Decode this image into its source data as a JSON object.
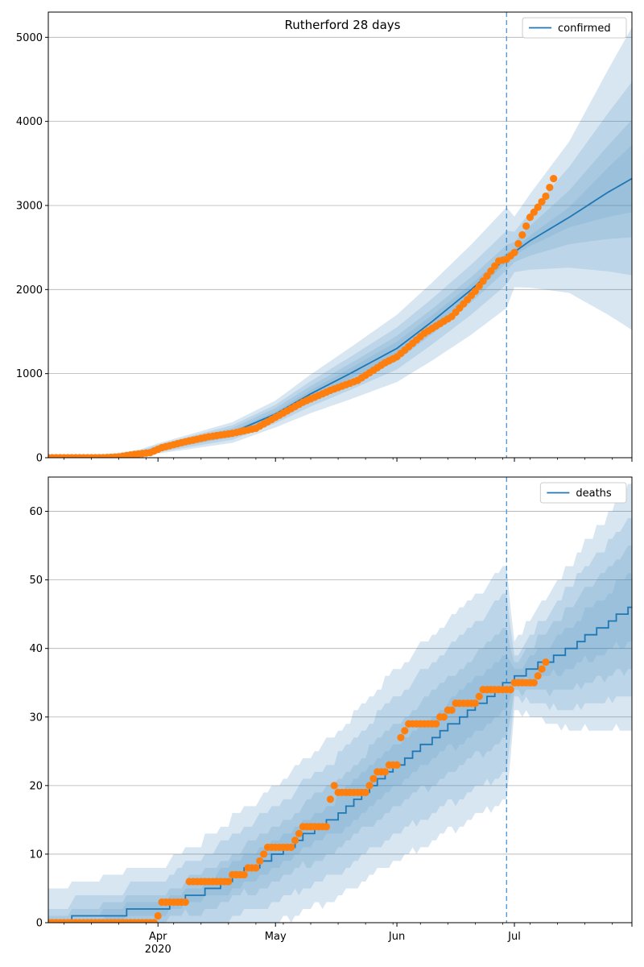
{
  "chart_data": [
    {
      "type": "line",
      "title": "Rutherford 28 days",
      "x_axis": {
        "type": "date",
        "range": [
          "2020-03-04",
          "2020-07-31"
        ],
        "tick_labels": [
          "Apr\n2020",
          "May",
          "Jun",
          "Jul"
        ]
      },
      "ylim": [
        0,
        5300
      ],
      "yticks": [
        0,
        1000,
        2000,
        3000,
        4000,
        5000
      ],
      "grid": "y",
      "legend": {
        "position": "top-right",
        "entries": [
          "confirmed"
        ]
      },
      "forecast_start": "2020-06-29",
      "series": [
        {
          "name": "confirmed",
          "color": "#1f77b4",
          "points": [
            [
              "2020-03-04",
              0
            ],
            [
              "2020-03-20",
              5
            ],
            [
              "2020-03-27",
              40
            ],
            [
              "2020-04-01",
              110
            ],
            [
              "2020-04-10",
              200
            ],
            [
              "2020-04-20",
              300
            ],
            [
              "2020-05-01",
              520
            ],
            [
              "2020-05-10",
              760
            ],
            [
              "2020-05-20",
              1000
            ],
            [
              "2020-06-01",
              1300
            ],
            [
              "2020-06-10",
              1620
            ],
            [
              "2020-06-20",
              2000
            ],
            [
              "2020-06-29",
              2380
            ],
            [
              "2020-07-05",
              2580
            ],
            [
              "2020-07-15",
              2860
            ],
            [
              "2020-07-25",
              3160
            ],
            [
              "2020-07-31",
              3320
            ]
          ],
          "band_half_widths": [
            [
              "2020-03-04",
              [
                0,
                5,
                10,
                20
              ]
            ],
            [
              "2020-04-01",
              [
                10,
                25,
                45,
                60
              ]
            ],
            [
              "2020-05-01",
              [
                30,
                70,
                110,
                160
              ]
            ],
            [
              "2020-06-01",
              [
                80,
                150,
                250,
                400
              ]
            ],
            [
              "2020-06-29",
              [
                60,
                150,
                320,
                600
              ]
            ],
            [
              "2020-07-01",
              [
                40,
                120,
                240,
                420
              ]
            ],
            [
              "2020-07-15",
              [
                120,
                320,
                600,
                900
              ]
            ],
            [
              "2020-07-31",
              [
                400,
                700,
                1150,
                1800
              ]
            ]
          ]
        },
        {
          "name": "observed confirmed",
          "color": "#ff7f0e",
          "points": [
            [
              "2020-03-04",
              0
            ],
            [
              "2020-03-18",
              0
            ],
            [
              "2020-03-22",
              10
            ],
            [
              "2020-03-26",
              40
            ],
            [
              "2020-03-30",
              60
            ],
            [
              "2020-04-02",
              120
            ],
            [
              "2020-04-08",
              190
            ],
            [
              "2020-04-14",
              250
            ],
            [
              "2020-04-20",
              290
            ],
            [
              "2020-04-26",
              350
            ],
            [
              "2020-05-01",
              480
            ],
            [
              "2020-05-08",
              660
            ],
            [
              "2020-05-15",
              800
            ],
            [
              "2020-05-22",
              920
            ],
            [
              "2020-05-29",
              1130
            ],
            [
              "2020-06-01",
              1200
            ],
            [
              "2020-06-08",
              1480
            ],
            [
              "2020-06-15",
              1680
            ],
            [
              "2020-06-21",
              1980
            ],
            [
              "2020-06-27",
              2340
            ],
            [
              "2020-06-29",
              2360
            ],
            [
              "2020-07-01",
              2440
            ],
            [
              "2020-07-03",
              2650
            ],
            [
              "2020-07-05",
              2860
            ],
            [
              "2020-07-07",
              2980
            ],
            [
              "2020-07-09",
              3110
            ],
            [
              "2020-07-11",
              3320
            ]
          ]
        }
      ]
    },
    {
      "type": "line",
      "title": "",
      "x_axis": {
        "type": "date",
        "range": [
          "2020-03-04",
          "2020-07-31"
        ],
        "tick_labels": [
          "Apr\n2020",
          "May",
          "Jun",
          "Jul"
        ]
      },
      "ylim": [
        0,
        65
      ],
      "yticks": [
        0,
        10,
        20,
        30,
        40,
        50,
        60
      ],
      "grid": "y",
      "legend": {
        "position": "top-right",
        "entries": [
          "deaths"
        ]
      },
      "forecast_start": "2020-06-29",
      "series": [
        {
          "name": "deaths",
          "color": "#1f77b4",
          "points": [
            [
              "2020-03-04",
              0
            ],
            [
              "2020-03-15",
              1
            ],
            [
              "2020-04-01",
              2
            ],
            [
              "2020-04-15",
              5
            ],
            [
              "2020-05-01",
              10
            ],
            [
              "2020-05-15",
              15
            ],
            [
              "2020-06-01",
              23
            ],
            [
              "2020-06-15",
              29
            ],
            [
              "2020-06-29",
              35
            ],
            [
              "2020-07-15",
              40
            ],
            [
              "2020-07-31",
              46
            ]
          ],
          "band_half_widths": [
            [
              "2020-03-04",
              [
                0,
                1,
                2,
                5
              ]
            ],
            [
              "2020-04-01",
              [
                1,
                2,
                4,
                6
              ]
            ],
            [
              "2020-05-01",
              [
                2,
                4,
                7,
                10
              ]
            ],
            [
              "2020-06-01",
              [
                3,
                6,
                10,
                14
              ]
            ],
            [
              "2020-06-29",
              [
                4,
                8,
                13,
                17
              ]
            ],
            [
              "2020-07-01",
              [
                1,
                2,
                3,
                5
              ]
            ],
            [
              "2020-07-15",
              [
                3,
                6,
                9,
                12
              ]
            ],
            [
              "2020-07-31",
              [
                5,
                9,
                13,
                18
              ]
            ]
          ]
        },
        {
          "name": "observed deaths",
          "color": "#ff7f0e",
          "points": [
            [
              "2020-03-04",
              0
            ],
            [
              "2020-03-31",
              0
            ],
            [
              "2020-04-01",
              1
            ],
            [
              "2020-04-02",
              3
            ],
            [
              "2020-04-08",
              3
            ],
            [
              "2020-04-09",
              6
            ],
            [
              "2020-04-18",
              6
            ],
            [
              "2020-04-22",
              7
            ],
            [
              "2020-04-26",
              8
            ],
            [
              "2020-04-28",
              10
            ],
            [
              "2020-04-30",
              11
            ],
            [
              "2020-05-05",
              11
            ],
            [
              "2020-05-06",
              12
            ],
            [
              "2020-05-08",
              14
            ],
            [
              "2020-05-14",
              14
            ],
            [
              "2020-05-15",
              18
            ],
            [
              "2020-05-16",
              20
            ],
            [
              "2020-05-17",
              19
            ],
            [
              "2020-05-24",
              19
            ],
            [
              "2020-05-25",
              20
            ],
            [
              "2020-05-27",
              22
            ],
            [
              "2020-05-29",
              22
            ],
            [
              "2020-05-30",
              23
            ],
            [
              "2020-06-01",
              23
            ],
            [
              "2020-06-02",
              27
            ],
            [
              "2020-06-03",
              28
            ],
            [
              "2020-06-05",
              29
            ],
            [
              "2020-06-11",
              29
            ],
            [
              "2020-06-12",
              30
            ],
            [
              "2020-06-15",
              31
            ],
            [
              "2020-06-17",
              32
            ],
            [
              "2020-06-21",
              32
            ],
            [
              "2020-06-22",
              33
            ],
            [
              "2020-06-24",
              34
            ],
            [
              "2020-06-30",
              34
            ],
            [
              "2020-07-01",
              35
            ],
            [
              "2020-07-06",
              35
            ],
            [
              "2020-07-07",
              36
            ],
            [
              "2020-07-08",
              37
            ],
            [
              "2020-07-09",
              38
            ]
          ]
        }
      ]
    }
  ]
}
